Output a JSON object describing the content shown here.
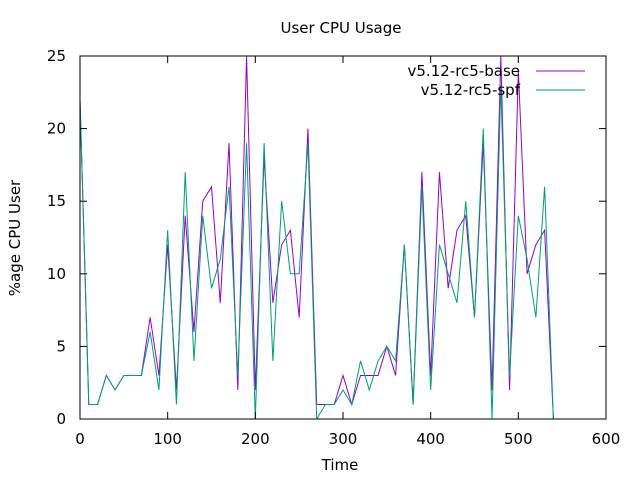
{
  "chart_data": {
    "type": "line",
    "title": "User CPU Usage",
    "xlabel": "Time",
    "ylabel": "%age CPU User",
    "xlim": [
      0,
      600
    ],
    "ylim": [
      0,
      25
    ],
    "xticks": [
      0,
      100,
      200,
      300,
      400,
      500,
      600
    ],
    "yticks": [
      0,
      5,
      10,
      15,
      20,
      25
    ],
    "grid": false,
    "legend_position": "top-right",
    "series": [
      {
        "name": "v5.12-rc5-base",
        "color": "#9400d3",
        "x": [
          0,
          10,
          20,
          30,
          40,
          50,
          60,
          70,
          80,
          90,
          100,
          110,
          120,
          130,
          140,
          150,
          160,
          170,
          180,
          190,
          200,
          210,
          220,
          230,
          240,
          250,
          260,
          270,
          280,
          290,
          300,
          310,
          320,
          330,
          340,
          350,
          360,
          370,
          380,
          390,
          400,
          410,
          420,
          430,
          440,
          450,
          460,
          470,
          480,
          490,
          500,
          510,
          520,
          530,
          540
        ],
        "values": [
          22,
          1,
          1,
          3,
          2,
          3,
          3,
          3,
          7,
          3,
          12,
          2,
          14,
          6,
          15,
          16,
          8,
          19,
          2,
          25,
          2,
          18,
          8,
          12,
          13,
          7,
          20,
          1,
          1,
          1,
          3,
          1,
          3,
          3,
          3,
          5,
          3,
          12,
          1,
          17,
          3,
          17,
          9,
          13,
          14,
          7,
          19,
          2,
          25,
          2,
          24,
          10,
          12,
          13,
          0
        ]
      },
      {
        "name": "v5.12-rc5-spf",
        "color": "#009e73",
        "x": [
          0,
          10,
          20,
          30,
          40,
          50,
          60,
          70,
          80,
          90,
          100,
          110,
          120,
          130,
          140,
          150,
          160,
          170,
          180,
          190,
          200,
          210,
          220,
          230,
          240,
          250,
          260,
          270,
          280,
          290,
          300,
          310,
          320,
          330,
          340,
          350,
          360,
          370,
          380,
          390,
          400,
          410,
          420,
          430,
          440,
          450,
          460,
          470,
          480,
          490,
          500,
          510,
          520,
          530,
          540
        ],
        "values": [
          22,
          1,
          1,
          3,
          2,
          3,
          3,
          3,
          6,
          2,
          13,
          1,
          17,
          4,
          14,
          9,
          11,
          16,
          3,
          19,
          0,
          19,
          4,
          15,
          10,
          10,
          19,
          0,
          1,
          1,
          2,
          1,
          4,
          2,
          4,
          5,
          4,
          12,
          1,
          16,
          2,
          12,
          10,
          8,
          15,
          7,
          20,
          0,
          23,
          3,
          14,
          11,
          7,
          16,
          0
        ]
      }
    ]
  }
}
